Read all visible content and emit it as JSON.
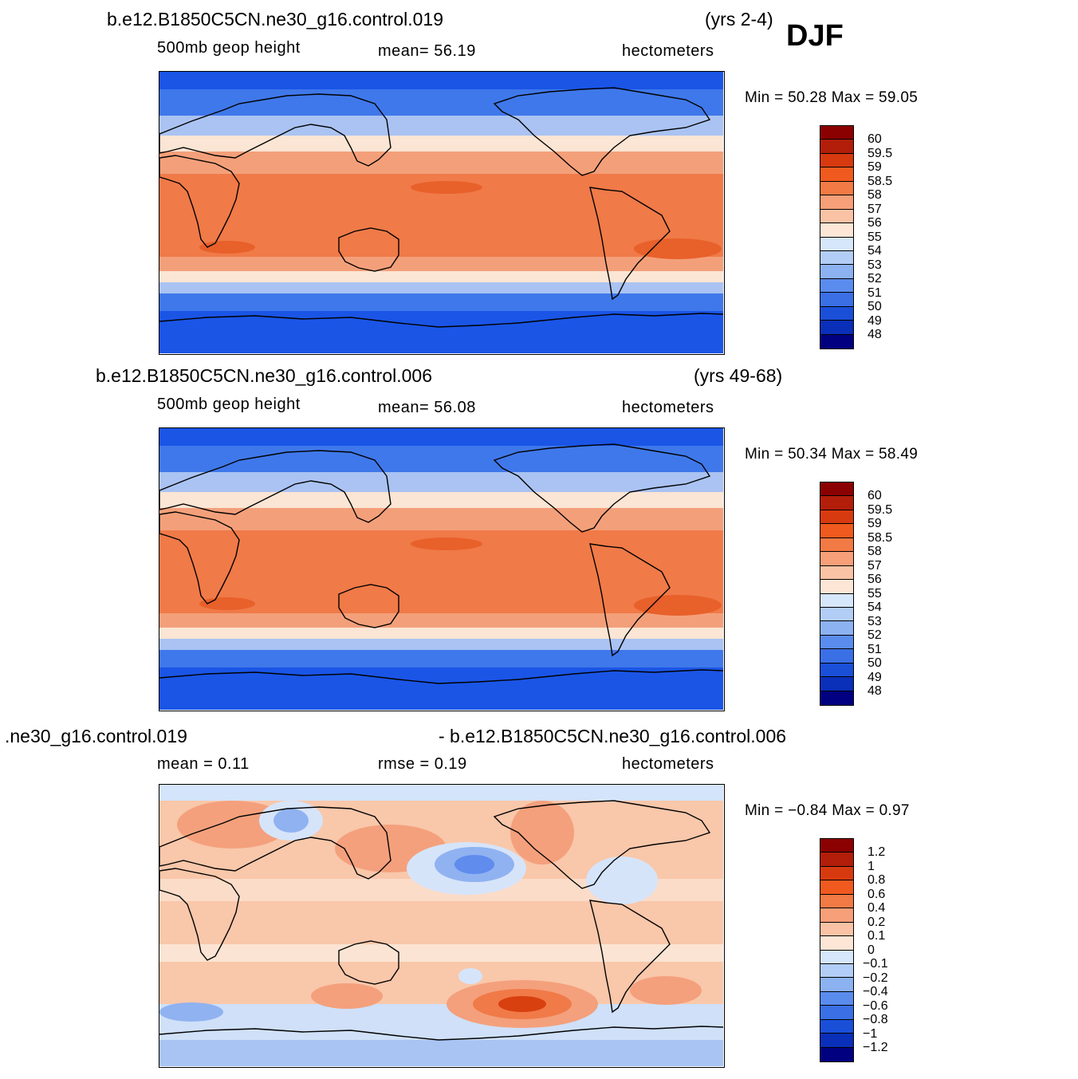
{
  "season": "DJF",
  "panels": [
    {
      "case_title": "b.e12.B1850C5CN.ne30_g16.control.019",
      "years": "(yrs 2-4)",
      "sub_left": "500mb  geop  height",
      "sub_mid": "mean=   56.19",
      "sub_right": "hectometers",
      "minmax": "Min =   50.28  Max =   59.05",
      "colorbar_labels": [
        "60",
        "59.5",
        "59",
        "58.5",
        "58",
        "57",
        "56",
        "55",
        "54",
        "53",
        "52",
        "51",
        "50",
        "49",
        "48"
      ],
      "bands": {
        "npole": "#1a55e6",
        "n60": "#3f78ea",
        "n45": "#aac3f2",
        "n35": "#fbe5d4",
        "n25": "#f3a07a",
        "trop": "#f07a48",
        "s25": "#f3a07a",
        "s35": "#fbe5d4",
        "s45": "#aac3f2",
        "s60": "#3f78ea",
        "spole": "#1a55e6"
      }
    },
    {
      "case_title": "b.e12.B1850C5CN.ne30_g16.control.006",
      "years": "(yrs 49-68)",
      "sub_left": "500mb  geop  height",
      "sub_mid": "mean=   56.08",
      "sub_right": "hectometers",
      "minmax": "Min =   50.34  Max =   58.49",
      "colorbar_labels": [
        "60",
        "59.5",
        "59",
        "58.5",
        "58",
        "57",
        "56",
        "55",
        "54",
        "53",
        "52",
        "51",
        "50",
        "49",
        "48"
      ],
      "bands": {
        "npole": "#1a55e6",
        "n60": "#3f78ea",
        "n45": "#aac3f2",
        "n35": "#fbe5d4",
        "n25": "#f3a07a",
        "trop": "#f07a48",
        "s25": "#f3a07a",
        "s35": "#fbe5d4",
        "s45": "#aac3f2",
        "s60": "#3f78ea",
        "spole": "#1a55e6"
      }
    },
    {
      "case_title_left": ".ne30_g16.control.019",
      "case_title_right": "- b.e12.B1850C5CN.ne30_g16.control.006",
      "sub_left": "mean =     0.11",
      "sub_mid": "rmse  =     0.19",
      "sub_right": "hectometers",
      "minmax": "Min =   −0.84  Max =     0.97",
      "colorbar_labels": [
        "1.2",
        "1",
        "0.8",
        "0.6",
        "0.4",
        "0.2",
        "0.1",
        "0",
        "−0.1",
        "−0.2",
        "−0.4",
        "−0.6",
        "−0.8",
        "−1",
        "−1.2"
      ]
    }
  ],
  "colors": {
    "colorbar_full": [
      "#8b0000",
      "#b21e0a",
      "#d83a10",
      "#f05a1e",
      "#f27a45",
      "#f69f78",
      "#fac3a5",
      "#fde6d6",
      "#d6e6fb",
      "#b2cdf6",
      "#8cb2f2",
      "#5a8cee",
      "#3a6fe6",
      "#1a4fd8",
      "#0a2fb8",
      "#000080"
    ]
  }
}
